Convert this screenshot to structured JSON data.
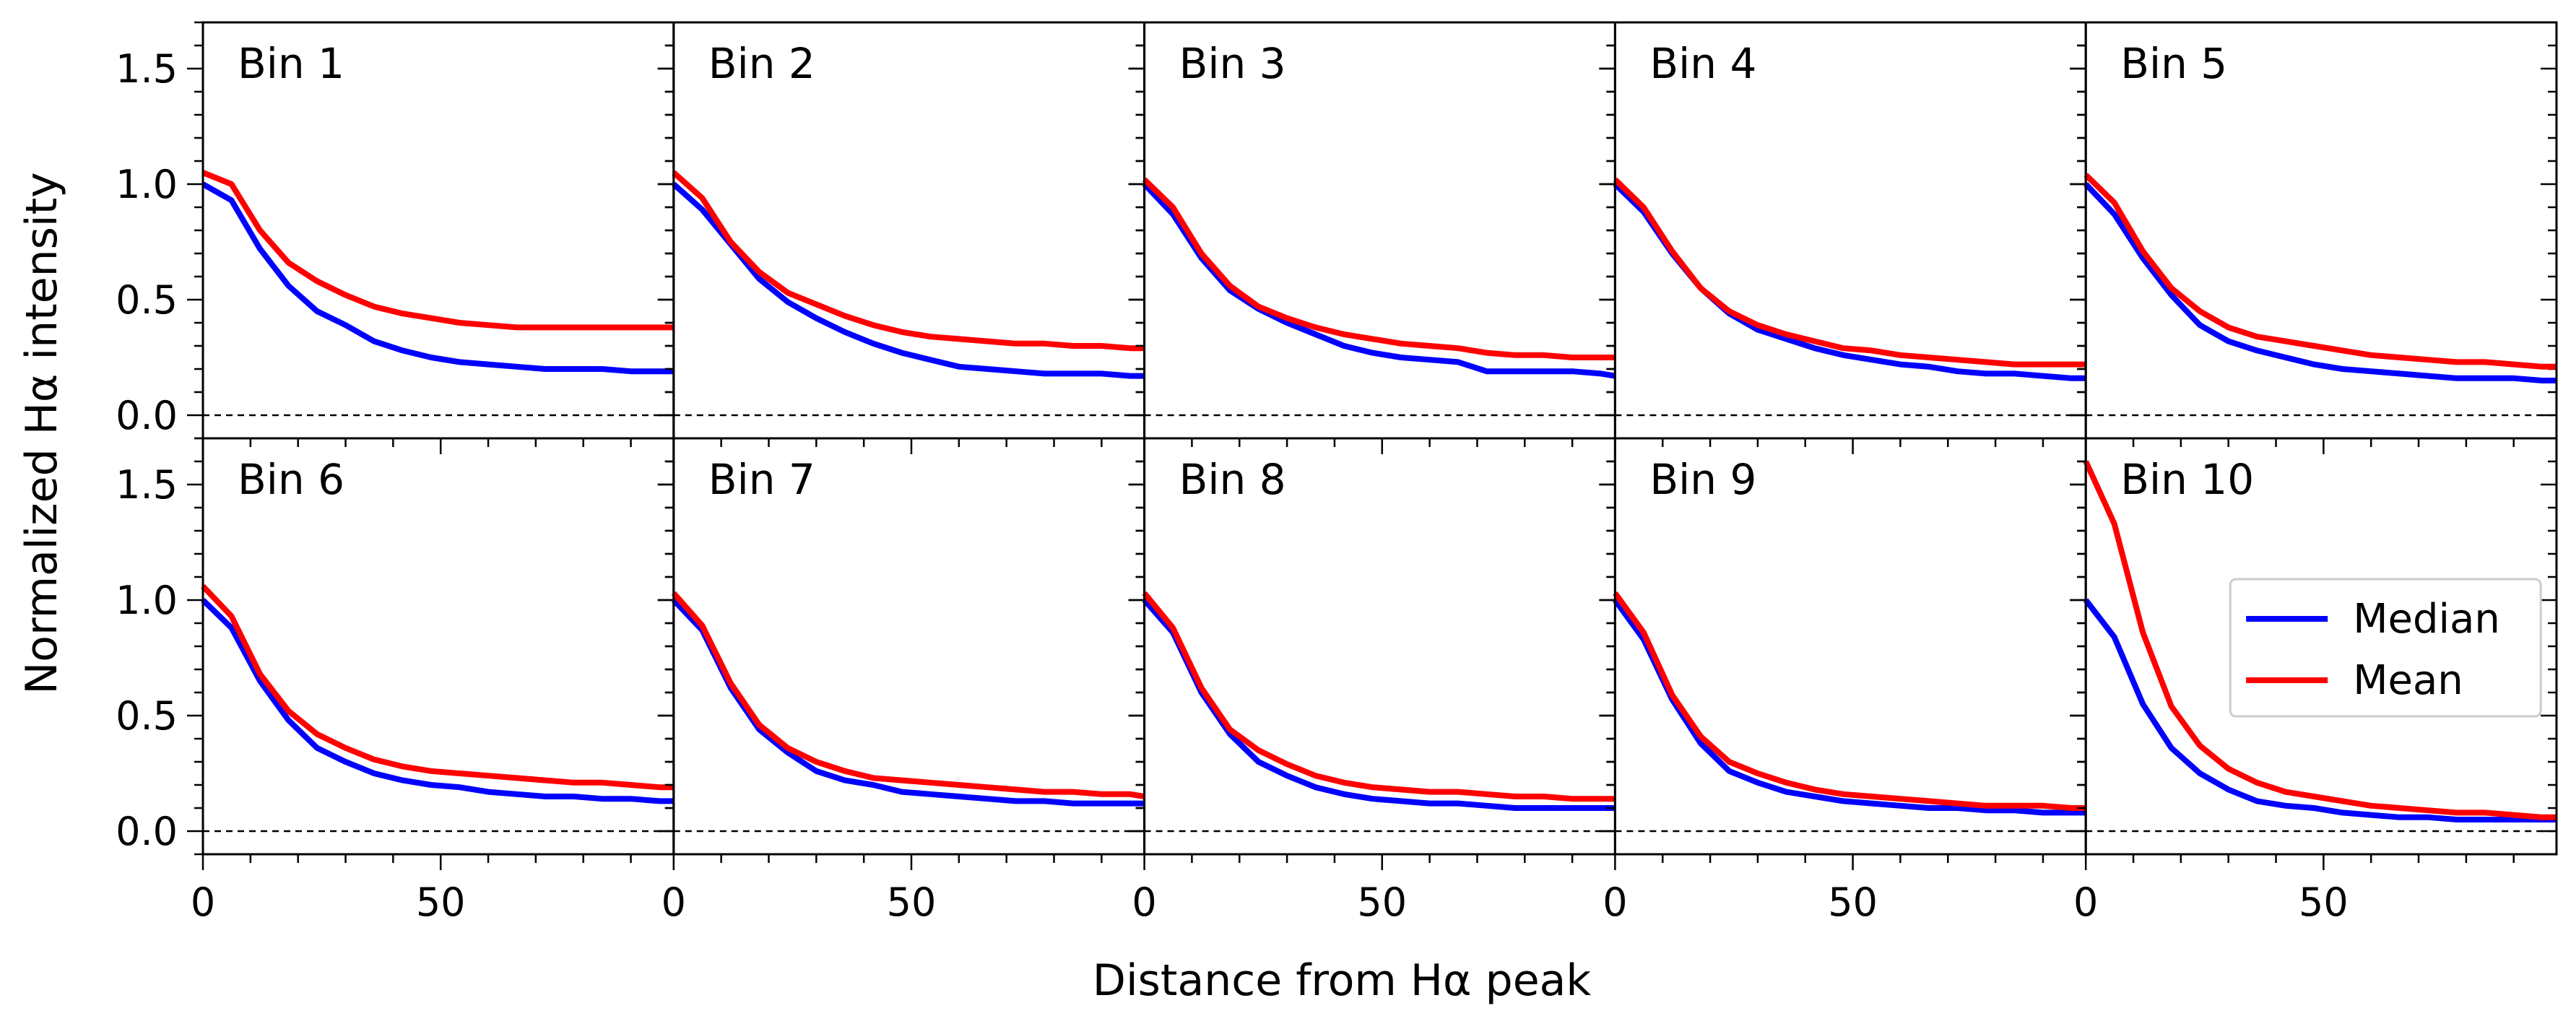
{
  "chart_data": {
    "type": "line",
    "layout": "2x5 small multiples",
    "xlabel": "Distance from Hα peak",
    "ylabel": "Normalized Hα intensity",
    "xlim": [
      0,
      99
    ],
    "ylim": [
      -0.1,
      1.7
    ],
    "xticks": [
      0,
      50
    ],
    "yticks": [
      0.0,
      0.5,
      1.0,
      1.5
    ],
    "reference_line": {
      "y": 0,
      "style": "dashed"
    },
    "legend": {
      "location": "panel 10, center-right",
      "entries": [
        "Median",
        "Mean"
      ]
    },
    "series_colors": {
      "Median": "#0000ff",
      "Mean": "#ff0000"
    },
    "x": [
      0,
      6,
      12,
      18,
      24,
      30,
      36,
      42,
      48,
      54,
      60,
      66,
      72,
      78,
      84,
      90,
      96,
      99
    ],
    "panels": [
      {
        "label": "Bin 1",
        "series": [
          {
            "name": "Median",
            "values": [
              1.0,
              0.93,
              0.72,
              0.56,
              0.45,
              0.39,
              0.32,
              0.28,
              0.25,
              0.23,
              0.22,
              0.21,
              0.2,
              0.2,
              0.2,
              0.19,
              0.19,
              0.19
            ]
          },
          {
            "name": "Mean",
            "values": [
              1.05,
              1.0,
              0.8,
              0.66,
              0.58,
              0.52,
              0.47,
              0.44,
              0.42,
              0.4,
              0.39,
              0.38,
              0.38,
              0.38,
              0.38,
              0.38,
              0.38,
              0.38
            ]
          }
        ]
      },
      {
        "label": "Bin 2",
        "series": [
          {
            "name": "Median",
            "values": [
              1.0,
              0.89,
              0.74,
              0.59,
              0.49,
              0.42,
              0.36,
              0.31,
              0.27,
              0.24,
              0.21,
              0.2,
              0.19,
              0.18,
              0.18,
              0.18,
              0.17,
              0.17
            ]
          },
          {
            "name": "Mean",
            "values": [
              1.05,
              0.94,
              0.75,
              0.62,
              0.53,
              0.48,
              0.43,
              0.39,
              0.36,
              0.34,
              0.33,
              0.32,
              0.31,
              0.31,
              0.3,
              0.3,
              0.29,
              0.29
            ]
          }
        ]
      },
      {
        "label": "Bin 3",
        "series": [
          {
            "name": "Median",
            "values": [
              1.0,
              0.87,
              0.68,
              0.54,
              0.46,
              0.4,
              0.35,
              0.3,
              0.27,
              0.25,
              0.24,
              0.23,
              0.19,
              0.19,
              0.19,
              0.19,
              0.18,
              0.17
            ]
          },
          {
            "name": "Mean",
            "values": [
              1.02,
              0.9,
              0.7,
              0.56,
              0.47,
              0.42,
              0.38,
              0.35,
              0.33,
              0.31,
              0.3,
              0.29,
              0.27,
              0.26,
              0.26,
              0.25,
              0.25,
              0.25
            ]
          }
        ]
      },
      {
        "label": "Bin 4",
        "series": [
          {
            "name": "Median",
            "values": [
              1.0,
              0.88,
              0.7,
              0.55,
              0.44,
              0.37,
              0.33,
              0.29,
              0.26,
              0.24,
              0.22,
              0.21,
              0.19,
              0.18,
              0.18,
              0.17,
              0.16,
              0.16
            ]
          },
          {
            "name": "Mean",
            "values": [
              1.02,
              0.9,
              0.71,
              0.55,
              0.45,
              0.39,
              0.35,
              0.32,
              0.29,
              0.28,
              0.26,
              0.25,
              0.24,
              0.23,
              0.22,
              0.22,
              0.22,
              0.22
            ]
          }
        ]
      },
      {
        "label": "Bin 5",
        "series": [
          {
            "name": "Median",
            "values": [
              1.0,
              0.87,
              0.68,
              0.52,
              0.39,
              0.32,
              0.28,
              0.25,
              0.22,
              0.2,
              0.19,
              0.18,
              0.17,
              0.16,
              0.16,
              0.16,
              0.15,
              0.15
            ]
          },
          {
            "name": "Mean",
            "values": [
              1.04,
              0.92,
              0.71,
              0.55,
              0.45,
              0.38,
              0.34,
              0.32,
              0.3,
              0.28,
              0.26,
              0.25,
              0.24,
              0.23,
              0.23,
              0.22,
              0.21,
              0.21
            ]
          }
        ]
      },
      {
        "label": "Bin 6",
        "series": [
          {
            "name": "Median",
            "values": [
              1.0,
              0.88,
              0.65,
              0.48,
              0.36,
              0.3,
              0.25,
              0.22,
              0.2,
              0.19,
              0.17,
              0.16,
              0.15,
              0.15,
              0.14,
              0.14,
              0.13,
              0.13
            ]
          },
          {
            "name": "Mean",
            "values": [
              1.06,
              0.93,
              0.68,
              0.52,
              0.42,
              0.36,
              0.31,
              0.28,
              0.26,
              0.25,
              0.24,
              0.23,
              0.22,
              0.21,
              0.21,
              0.2,
              0.19,
              0.19
            ]
          }
        ]
      },
      {
        "label": "Bin 7",
        "series": [
          {
            "name": "Median",
            "values": [
              1.0,
              0.87,
              0.62,
              0.44,
              0.34,
              0.26,
              0.22,
              0.2,
              0.17,
              0.16,
              0.15,
              0.14,
              0.13,
              0.13,
              0.12,
              0.12,
              0.12,
              0.12
            ]
          },
          {
            "name": "Mean",
            "values": [
              1.03,
              0.89,
              0.64,
              0.46,
              0.36,
              0.3,
              0.26,
              0.23,
              0.22,
              0.21,
              0.2,
              0.19,
              0.18,
              0.17,
              0.17,
              0.16,
              0.16,
              0.15
            ]
          }
        ]
      },
      {
        "label": "Bin 8",
        "series": [
          {
            "name": "Median",
            "values": [
              1.0,
              0.86,
              0.6,
              0.42,
              0.3,
              0.24,
              0.19,
              0.16,
              0.14,
              0.13,
              0.12,
              0.12,
              0.11,
              0.1,
              0.1,
              0.1,
              0.1,
              0.1
            ]
          },
          {
            "name": "Mean",
            "values": [
              1.03,
              0.88,
              0.62,
              0.44,
              0.35,
              0.29,
              0.24,
              0.21,
              0.19,
              0.18,
              0.17,
              0.17,
              0.16,
              0.15,
              0.15,
              0.14,
              0.14,
              0.14
            ]
          }
        ]
      },
      {
        "label": "Bin 9",
        "series": [
          {
            "name": "Median",
            "values": [
              1.0,
              0.83,
              0.57,
              0.38,
              0.26,
              0.21,
              0.17,
              0.15,
              0.13,
              0.12,
              0.11,
              0.1,
              0.1,
              0.09,
              0.09,
              0.08,
              0.08,
              0.08
            ]
          },
          {
            "name": "Mean",
            "values": [
              1.03,
              0.86,
              0.59,
              0.41,
              0.3,
              0.25,
              0.21,
              0.18,
              0.16,
              0.15,
              0.14,
              0.13,
              0.12,
              0.11,
              0.11,
              0.11,
              0.1,
              0.1
            ]
          }
        ]
      },
      {
        "label": "Bin 10",
        "series": [
          {
            "name": "Median",
            "values": [
              1.0,
              0.84,
              0.55,
              0.36,
              0.25,
              0.18,
              0.13,
              0.11,
              0.1,
              0.08,
              0.07,
              0.06,
              0.06,
              0.05,
              0.05,
              0.05,
              0.05,
              0.05
            ]
          },
          {
            "name": "Mean",
            "values": [
              1.6,
              1.33,
              0.86,
              0.54,
              0.37,
              0.27,
              0.21,
              0.17,
              0.15,
              0.13,
              0.11,
              0.1,
              0.09,
              0.08,
              0.08,
              0.07,
              0.06,
              0.06
            ]
          }
        ]
      }
    ]
  }
}
